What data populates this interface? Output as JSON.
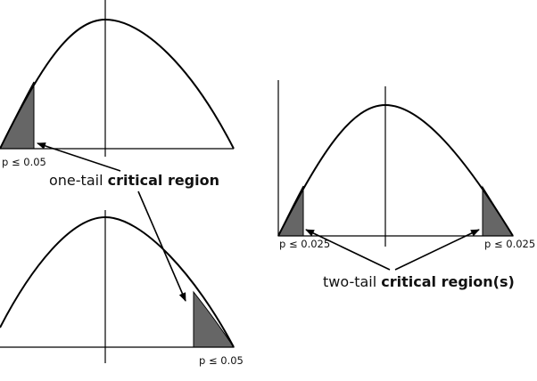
{
  "labels": {
    "one_tail_left_p": "p ≤ 0.05",
    "one_tail_right_p": "p ≤ 0.05",
    "two_tail_left_p": "p ≤ 0.025",
    "two_tail_right_p": "p ≤ 0.025",
    "one_tail_prefix": "one-tail ",
    "one_tail_bold": "critical region",
    "two_tail_prefix": "two-tail ",
    "two_tail_bold": "critical region(s)"
  },
  "colors": {
    "curve": "#000000",
    "shade": "#666666",
    "axis": "#000000"
  }
}
